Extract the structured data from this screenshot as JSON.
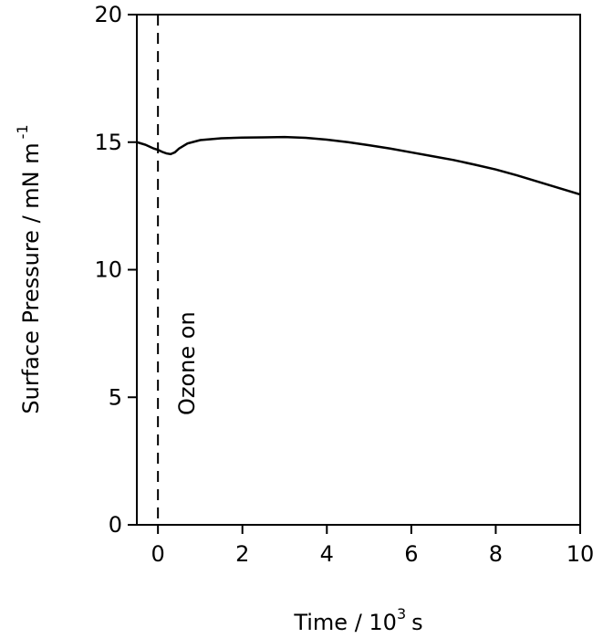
{
  "chart_data": {
    "type": "line",
    "xlabel": [
      "Time / 10",
      "3",
      "s"
    ],
    "ylabel": [
      "Surface Pressure / mN m",
      "-1"
    ],
    "x": [
      -0.5,
      -0.3,
      -0.1,
      0.0,
      0.1,
      0.2,
      0.3,
      0.4,
      0.5,
      0.7,
      1.0,
      1.5,
      2.0,
      2.5,
      3.0,
      3.5,
      4.0,
      4.5,
      5.0,
      5.5,
      6.0,
      6.5,
      7.0,
      7.5,
      8.0,
      8.5,
      9.0,
      9.5,
      10.0
    ],
    "series": [
      {
        "color": "#000000",
        "values": [
          15.0,
          14.9,
          14.75,
          14.7,
          14.62,
          14.56,
          14.53,
          14.6,
          14.75,
          14.95,
          15.08,
          15.15,
          15.18,
          15.19,
          15.2,
          15.17,
          15.1,
          15.0,
          14.88,
          14.75,
          14.6,
          14.45,
          14.3,
          14.12,
          13.93,
          13.7,
          13.45,
          13.2,
          12.95
        ]
      }
    ],
    "xlim": [
      -0.5,
      10
    ],
    "xticks": [
      0,
      2,
      4,
      6,
      8,
      10
    ],
    "ylim": [
      0,
      20
    ],
    "yticks": [
      0,
      5,
      10,
      15,
      20
    ],
    "annotation": {
      "text": "Ozone on",
      "x": 0
    }
  }
}
